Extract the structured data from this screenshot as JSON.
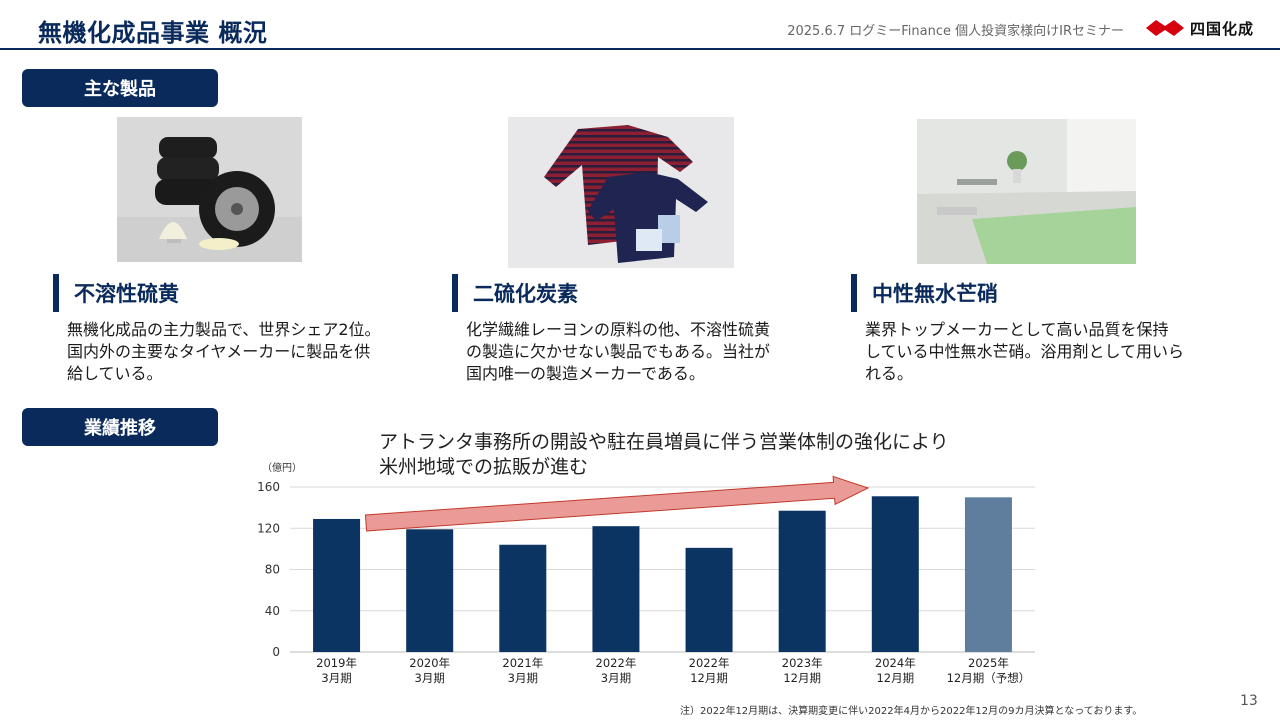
{
  "header": {
    "title": "無機化成品事業 概況",
    "event": "2025.6.7 ログミーFinance 個人投資家様向けIRセミナー",
    "logo_text": "四国化成"
  },
  "sections": {
    "products_label": "主な製品",
    "performance_label": "業績推移"
  },
  "products": [
    {
      "name": "不溶性硫黄",
      "desc_lines": [
        "無機化成品の主力製品で、世界シェア2位。",
        "国内外の主要なタイヤメーカーに製品を供",
        "給している。"
      ],
      "image": "tires-and-sulfur-powder-photo"
    },
    {
      "name": "二硫化炭素",
      "desc_lines": [
        "化学繊維レーヨンの原料の他、不溶性硫黄",
        "の製造に欠かせない製品でもある。当社が",
        "国内唯一の製造メーカーである。"
      ],
      "image": "rayon-clothing-photo"
    },
    {
      "name": "中性無水芒硝",
      "desc_lines": [
        "業界トップメーカーとして高い品質を保持",
        "している中性無水芒硝。浴用剤として用いら",
        "れる。"
      ],
      "image": "bathtub-photo"
    }
  ],
  "callout": {
    "line1": "アトランタ事務所の開設や駐在員増員に伴う営業体制の強化により",
    "line2": "米州地域での拡販が進む"
  },
  "colors": {
    "navy": "#0a2a5c",
    "bar": "#0c3463",
    "bar_forecast": "#5f7d9c",
    "arrow_fill": "#e8908c",
    "arrow_stroke": "#c0392b",
    "logo_red": "#d7000f"
  },
  "chart_data": {
    "type": "bar",
    "ylabel": "（億円）",
    "ylim": [
      0,
      160
    ],
    "yticks": [
      0,
      40,
      80,
      120,
      160
    ],
    "categories": [
      [
        "2019年",
        "3月期"
      ],
      [
        "2020年",
        "3月期"
      ],
      [
        "2021年",
        "3月期"
      ],
      [
        "2022年",
        "3月期"
      ],
      [
        "2022年",
        "12月期"
      ],
      [
        "2023年",
        "12月期"
      ],
      [
        "2024年",
        "12月期"
      ],
      [
        "2025年",
        "12月期（予想）"
      ]
    ],
    "values": [
      129,
      119,
      104,
      122,
      101,
      137,
      151,
      150
    ],
    "forecast_index": 7
  },
  "footnote": "注）2022年12月期は、決算期変更に伴い2022年4月から2022年12月の9カ月決算となっております。",
  "page_number": "13"
}
